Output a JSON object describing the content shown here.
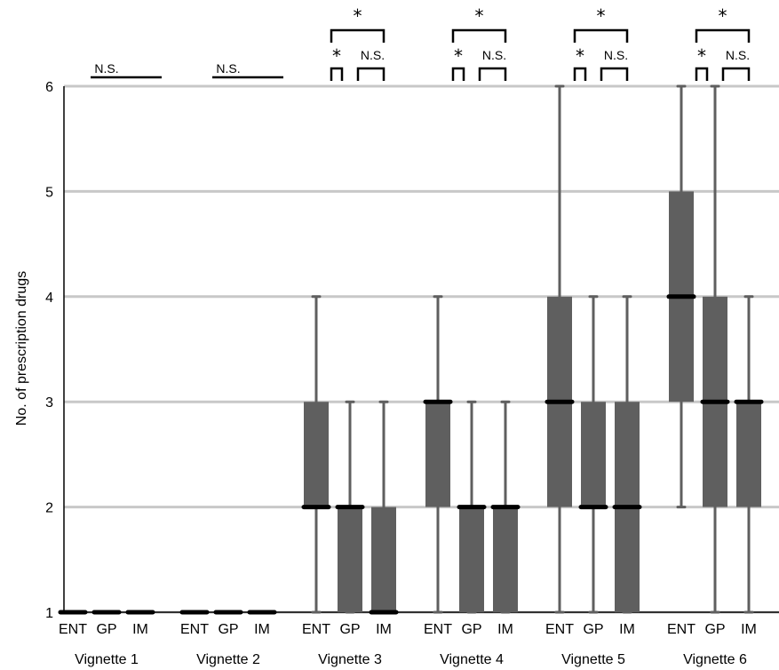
{
  "chart_data": {
    "type": "box",
    "ylabel": "No. of prescription drugs",
    "ylim": [
      1,
      6
    ],
    "yticks": [
      1,
      2,
      3,
      4,
      5,
      6
    ],
    "grid": true,
    "colors": {
      "box": "#5f5f5f",
      "median": "#000000",
      "grid": "#c8c8c8"
    },
    "groups": [
      {
        "name": "Vignette 1",
        "boxes": [
          {
            "label": "ENT",
            "min": 1,
            "q1": 1,
            "median": 1,
            "q3": 1,
            "max": 1
          },
          {
            "label": "GP",
            "min": 1,
            "q1": 1,
            "median": 1,
            "q3": 1,
            "max": 1
          },
          {
            "label": "IM",
            "min": 1,
            "q1": 1,
            "median": 1,
            "q3": 1,
            "max": 1
          }
        ],
        "significance": {
          "overall": "N.S."
        }
      },
      {
        "name": "Vignette 2",
        "boxes": [
          {
            "label": "ENT",
            "min": 1,
            "q1": 1,
            "median": 1,
            "q3": 1,
            "max": 1
          },
          {
            "label": "GP",
            "min": 1,
            "q1": 1,
            "median": 1,
            "q3": 1,
            "max": 1
          },
          {
            "label": "IM",
            "min": 1,
            "q1": 1,
            "median": 1,
            "q3": 1,
            "max": 1
          }
        ],
        "significance": {
          "overall": "N.S."
        }
      },
      {
        "name": "Vignette 3",
        "boxes": [
          {
            "label": "ENT",
            "min": 1,
            "q1": 2,
            "median": 2,
            "q3": 3,
            "max": 4
          },
          {
            "label": "GP",
            "min": 1,
            "q1": 1,
            "median": 2,
            "q3": 2,
            "max": 3
          },
          {
            "label": "IM",
            "min": 1,
            "q1": 1,
            "median": 1,
            "q3": 2,
            "max": 3
          }
        ],
        "significance": {
          "overall": "*",
          "ent_gp": "*",
          "gp_im": "N.S."
        }
      },
      {
        "name": "Vignette 4",
        "boxes": [
          {
            "label": "ENT",
            "min": 1,
            "q1": 2,
            "median": 3,
            "q3": 3,
            "max": 4
          },
          {
            "label": "GP",
            "min": 1,
            "q1": 1,
            "median": 2,
            "q3": 2,
            "max": 3
          },
          {
            "label": "IM",
            "min": 1,
            "q1": 1,
            "median": 2,
            "q3": 2,
            "max": 3
          }
        ],
        "significance": {
          "overall": "*",
          "ent_gp": "*",
          "gp_im": "N.S."
        }
      },
      {
        "name": "Vignette 5",
        "boxes": [
          {
            "label": "ENT",
            "min": 1,
            "q1": 2,
            "median": 3,
            "q3": 4,
            "max": 6
          },
          {
            "label": "GP",
            "min": 1,
            "q1": 2,
            "median": 2,
            "q3": 3,
            "max": 4
          },
          {
            "label": "IM",
            "min": 1,
            "q1": 1,
            "median": 2,
            "q3": 3,
            "max": 4
          }
        ],
        "significance": {
          "overall": "*",
          "ent_gp": "*",
          "gp_im": "N.S."
        }
      },
      {
        "name": "Vignette 6",
        "boxes": [
          {
            "label": "ENT",
            "min": 2,
            "q1": 3,
            "median": 4,
            "q3": 5,
            "max": 6
          },
          {
            "label": "GP",
            "min": 1,
            "q1": 2,
            "median": 3,
            "q3": 4,
            "max": 6
          },
          {
            "label": "IM",
            "min": 1,
            "q1": 2,
            "median": 3,
            "q3": 3,
            "max": 4
          }
        ],
        "significance": {
          "overall": "*",
          "ent_gp": "*",
          "gp_im": "N.S."
        }
      }
    ]
  }
}
